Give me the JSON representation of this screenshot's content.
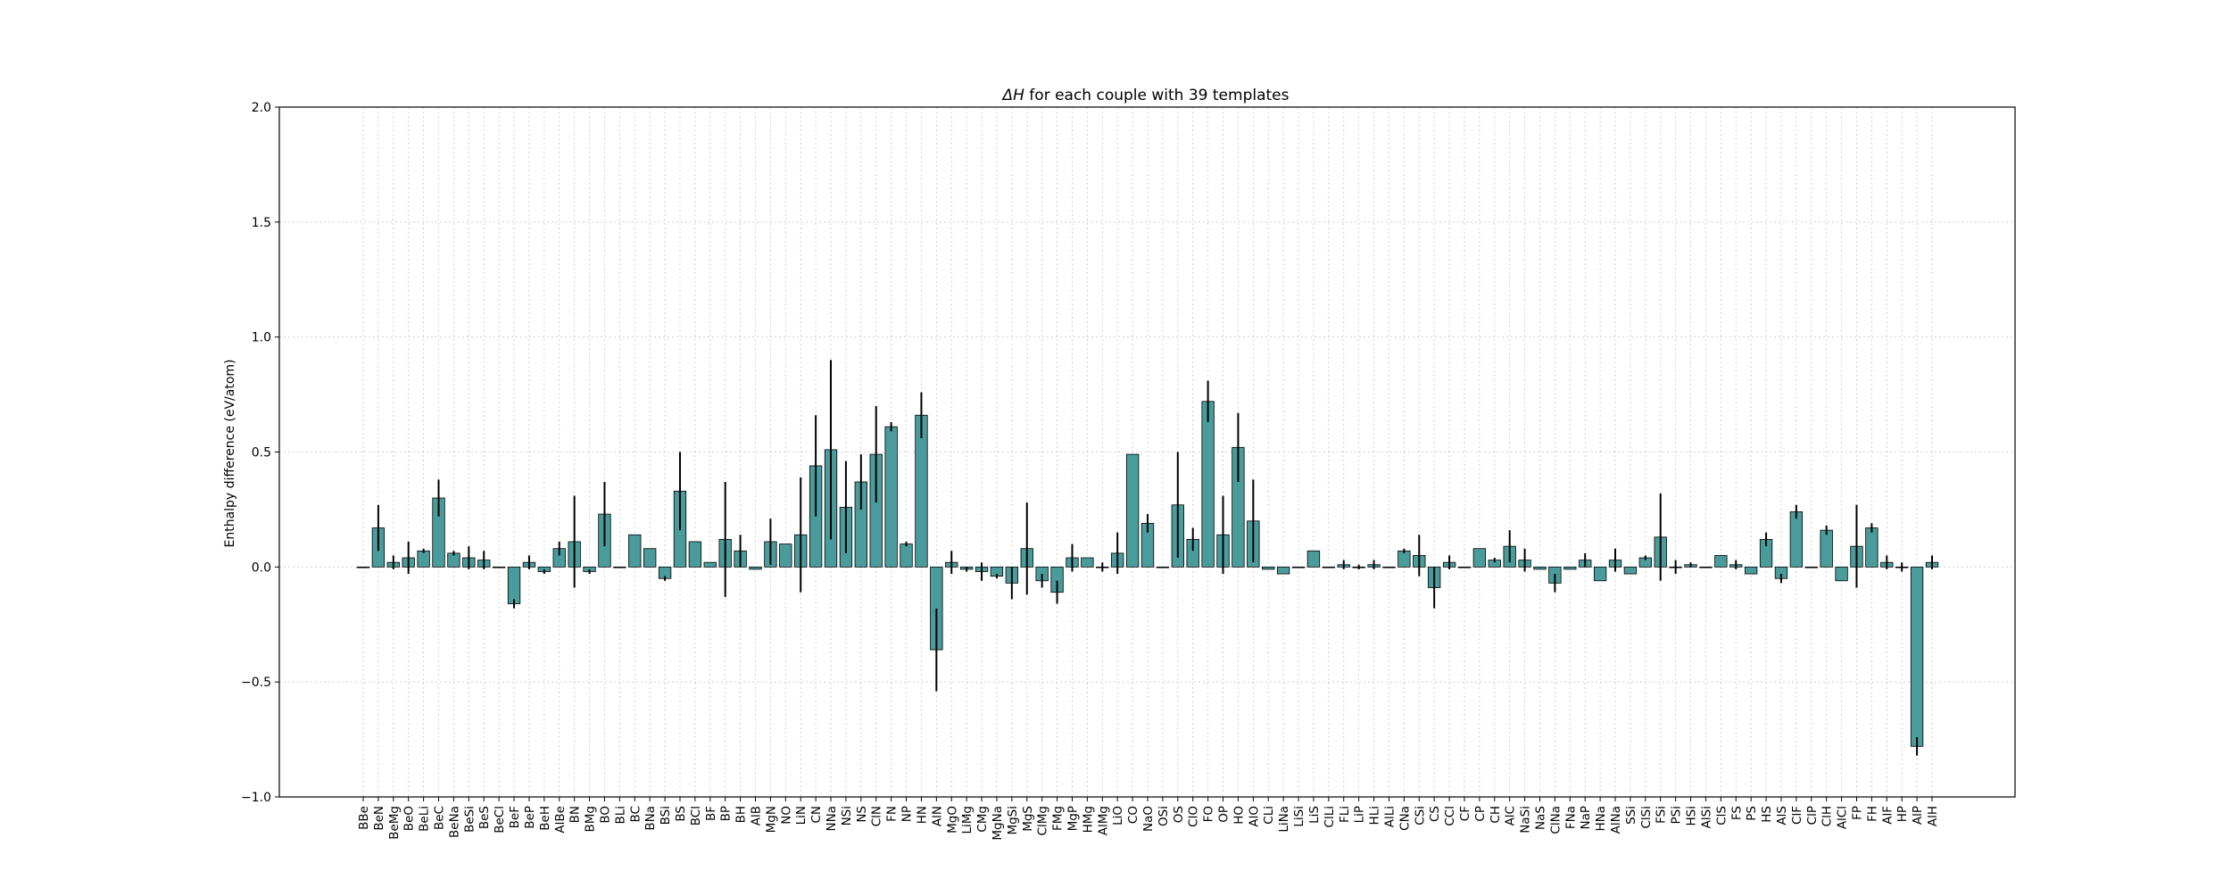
{
  "chart_data": {
    "type": "bar",
    "title_symbol": "ΔH",
    "title_rest": " for each couple with 39 templates",
    "xlabel": "",
    "ylabel": "Enthalpy difference (eV/atom)",
    "ylim": [
      -1.0,
      2.0
    ],
    "yticks": [
      "−1.0",
      "−0.5",
      "0.0",
      "0.5",
      "1.0",
      "1.5",
      "2.0"
    ],
    "grid": true,
    "bar_color": "#4a9c9c",
    "categories": [
      "BBe",
      "BeN",
      "BeMg",
      "BeO",
      "BeLi",
      "BeC",
      "BeNa",
      "BeSi",
      "BeS",
      "BeCl",
      "BeF",
      "BeP",
      "BeH",
      "AlBe",
      "BN",
      "BMg",
      "BO",
      "BLi",
      "BC",
      "BNa",
      "BSi",
      "BS",
      "BCl",
      "BF",
      "BP",
      "BH",
      "AlB",
      "MgN",
      "NO",
      "LiN",
      "CN",
      "NNa",
      "NSi",
      "NS",
      "ClN",
      "FN",
      "NP",
      "HN",
      "AlN",
      "MgO",
      "LiMg",
      "CMg",
      "MgNa",
      "MgSi",
      "MgS",
      "ClMg",
      "FMg",
      "MgP",
      "HMg",
      "AlMg",
      "LiO",
      "CO",
      "NaO",
      "OSi",
      "OS",
      "ClO",
      "FO",
      "OP",
      "HO",
      "AlO",
      "CLi",
      "LiNa",
      "LiSi",
      "LiS",
      "ClLi",
      "FLi",
      "LiP",
      "HLi",
      "AlLi",
      "CNa",
      "CSi",
      "CS",
      "CCl",
      "CF",
      "CP",
      "CH",
      "AlC",
      "NaSi",
      "NaS",
      "ClNa",
      "FNa",
      "NaP",
      "HNa",
      "AlNa",
      "SSi",
      "ClSi",
      "FSi",
      "PSi",
      "HSi",
      "AlSi",
      "ClS",
      "FS",
      "PS",
      "HS",
      "AlS",
      "ClF",
      "ClP",
      "ClH",
      "AlCl",
      "FP",
      "FH",
      "AlF",
      "HP",
      "AlP",
      "AlH"
    ],
    "values": [
      0.0,
      0.17,
      0.02,
      0.04,
      0.07,
      0.3,
      0.06,
      0.04,
      0.03,
      0.0,
      -0.16,
      0.02,
      -0.02,
      0.08,
      0.11,
      -0.02,
      0.23,
      0.0,
      0.14,
      0.08,
      -0.05,
      0.33,
      0.11,
      0.02,
      0.12,
      0.07,
      -0.01,
      0.11,
      0.1,
      0.14,
      0.44,
      0.51,
      0.26,
      0.37,
      0.49,
      0.61,
      0.1,
      0.66,
      -0.36,
      0.02,
      -0.01,
      -0.02,
      -0.04,
      -0.07,
      0.08,
      -0.06,
      -0.11,
      0.04,
      0.04,
      0.0,
      0.06,
      0.49,
      0.19,
      0.0,
      0.27,
      0.12,
      0.72,
      0.14,
      0.52,
      0.2,
      -0.01,
      -0.03,
      0.0,
      0.07,
      0.0,
      0.01,
      0.0,
      0.01,
      0.0,
      0.07,
      0.05,
      -0.09,
      0.02,
      0.0,
      0.08,
      0.03,
      0.09,
      0.03,
      -0.01,
      -0.07,
      -0.01,
      0.03,
      -0.06,
      0.03,
      -0.03,
      0.04,
      0.13,
      0.0,
      0.01,
      0.0,
      0.05,
      0.01,
      -0.03,
      0.12,
      -0.05,
      0.24,
      0.0,
      0.16,
      -0.06,
      0.09,
      0.17,
      0.02,
      0.0,
      -0.78,
      0.02
    ],
    "errors": [
      0.0,
      0.1,
      0.03,
      0.07,
      0.01,
      0.08,
      0.01,
      0.05,
      0.04,
      0.0,
      0.02,
      0.03,
      0.01,
      0.03,
      0.2,
      0.01,
      0.14,
      0.0,
      0.0,
      0.0,
      0.01,
      0.17,
      0.0,
      0.0,
      0.25,
      0.07,
      0.0,
      0.1,
      0.0,
      0.25,
      0.22,
      0.39,
      0.2,
      0.12,
      0.21,
      0.02,
      0.01,
      0.1,
      0.18,
      0.05,
      0.01,
      0.04,
      0.01,
      0.07,
      0.2,
      0.03,
      0.05,
      0.06,
      0.0,
      0.02,
      0.09,
      0.0,
      0.04,
      0.0,
      0.23,
      0.05,
      0.09,
      0.17,
      0.15,
      0.18,
      0.0,
      0.0,
      0.0,
      0.0,
      0.0,
      0.02,
      0.01,
      0.02,
      0.0,
      0.01,
      0.09,
      0.09,
      0.03,
      0.0,
      0.0,
      0.01,
      0.07,
      0.05,
      0.0,
      0.04,
      0.0,
      0.03,
      0.0,
      0.05,
      0.0,
      0.01,
      0.19,
      0.03,
      0.01,
      0.0,
      0.0,
      0.02,
      0.0,
      0.03,
      0.02,
      0.03,
      0.0,
      0.02,
      0.0,
      0.18,
      0.02,
      0.03,
      0.02,
      0.04,
      0.03
    ]
  }
}
